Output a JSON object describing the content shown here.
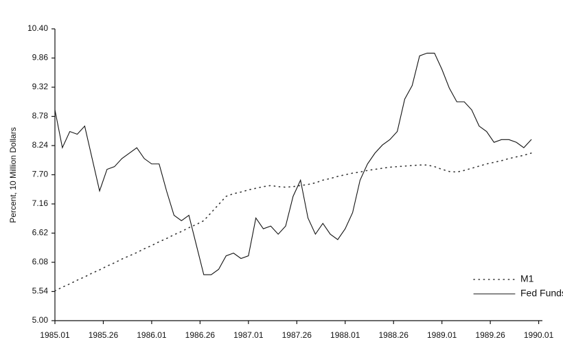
{
  "chart_data": {
    "type": "line",
    "ylabel": "Percent, 10 Million Dollars",
    "x": [
      0,
      4,
      8,
      12,
      16,
      20,
      24,
      28,
      32,
      36,
      40,
      44,
      48,
      52,
      56,
      60,
      64,
      68,
      72,
      76,
      80,
      84,
      88,
      92,
      96,
      100,
      104,
      108,
      112,
      116,
      120,
      124,
      128,
      132,
      136,
      140,
      144,
      148,
      152,
      156,
      160,
      164,
      168,
      172,
      176,
      180,
      184,
      188,
      192,
      196,
      200,
      204,
      208,
      212,
      216,
      220,
      224,
      228,
      232,
      236,
      240,
      244,
      248,
      252,
      256
    ],
    "series": [
      {
        "name": "M1",
        "color": "#333333",
        "style": "dotted",
        "values": [
          5.55,
          5.62,
          5.68,
          5.75,
          5.81,
          5.88,
          5.94,
          6.01,
          6.07,
          6.14,
          6.2,
          6.26,
          6.33,
          6.39,
          6.46,
          6.52,
          6.59,
          6.65,
          6.72,
          6.78,
          6.85,
          7.0,
          7.15,
          7.3,
          7.35,
          7.38,
          7.42,
          7.45,
          7.48,
          7.5,
          7.48,
          7.47,
          7.48,
          7.5,
          7.52,
          7.55,
          7.6,
          7.63,
          7.67,
          7.7,
          7.73,
          7.75,
          7.78,
          7.8,
          7.82,
          7.84,
          7.85,
          7.86,
          7.87,
          7.88,
          7.88,
          7.85,
          7.8,
          7.76,
          7.75,
          7.78,
          7.82,
          7.86,
          7.9,
          7.93,
          7.96,
          8.0,
          8.03,
          8.06,
          8.1
        ]
      },
      {
        "name": "Fed Funds",
        "color": "#111111",
        "style": "solid",
        "values": [
          8.9,
          8.2,
          8.5,
          8.45,
          8.6,
          8.0,
          7.4,
          7.8,
          7.85,
          8.0,
          8.1,
          8.2,
          8.0,
          7.9,
          7.9,
          7.4,
          6.95,
          6.85,
          6.95,
          6.4,
          5.85,
          5.85,
          5.95,
          6.2,
          6.25,
          6.15,
          6.2,
          6.9,
          6.7,
          6.75,
          6.6,
          6.75,
          7.3,
          7.6,
          6.9,
          6.6,
          6.8,
          6.6,
          6.5,
          6.7,
          7.0,
          7.6,
          7.9,
          8.1,
          8.25,
          8.35,
          8.5,
          9.1,
          9.35,
          9.9,
          9.95,
          9.95,
          9.65,
          9.3,
          9.05,
          9.05,
          8.9,
          8.6,
          8.5,
          8.3,
          8.35,
          8.35,
          8.3,
          8.2,
          8.35
        ]
      }
    ],
    "xlim": [
      0,
      262
    ],
    "xticks": [
      {
        "value": 0,
        "label": "1985.01"
      },
      {
        "value": 26,
        "label": "1985.26"
      },
      {
        "value": 52,
        "label": "1986.01"
      },
      {
        "value": 78,
        "label": "1986.26"
      },
      {
        "value": 104,
        "label": "1987.01"
      },
      {
        "value": 130,
        "label": "1987.26"
      },
      {
        "value": 156,
        "label": "1988.01"
      },
      {
        "value": 182,
        "label": "1988.26"
      },
      {
        "value": 208,
        "label": "1989.01"
      },
      {
        "value": 234,
        "label": "1989.26"
      },
      {
        "value": 260,
        "label": "1990.01"
      }
    ],
    "ylim": [
      5,
      10.4
    ],
    "yticks": [
      {
        "value": 5,
        "label": "5.00"
      },
      5.54,
      6.08,
      6.62,
      7.16,
      {
        "value": 7.7,
        "label": "7.70"
      },
      8.24,
      8.78,
      9.32,
      9.86,
      {
        "value": 10.4,
        "label": "10.40"
      }
    ],
    "legend": "lower right"
  }
}
